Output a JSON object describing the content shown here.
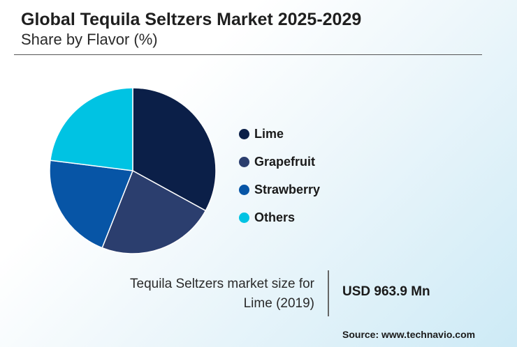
{
  "header": {
    "title": "Global Tequila Seltzers Market 2025-2029",
    "subtitle": "Share by Flavor (%)"
  },
  "chart_data": {
    "type": "pie",
    "title": "Global Tequila Seltzers Market 2025-2029",
    "subtitle": "Share by Flavor (%)",
    "legend_position": "right",
    "series": [
      {
        "name": "Lime",
        "value": 33,
        "color": "#0b1f48"
      },
      {
        "name": "Grapefruit",
        "value": 23,
        "color": "#2b3e6e"
      },
      {
        "name": "Strawberry",
        "value": 21,
        "color": "#0755a6"
      },
      {
        "name": "Others",
        "value": 23,
        "color": "#00c3e3"
      }
    ]
  },
  "stat": {
    "label_line1": "Tequila Seltzers market size for",
    "label_line2": "Lime (2019)",
    "value": "USD 963.9 Mn"
  },
  "source": "Source: www.technavio.com"
}
